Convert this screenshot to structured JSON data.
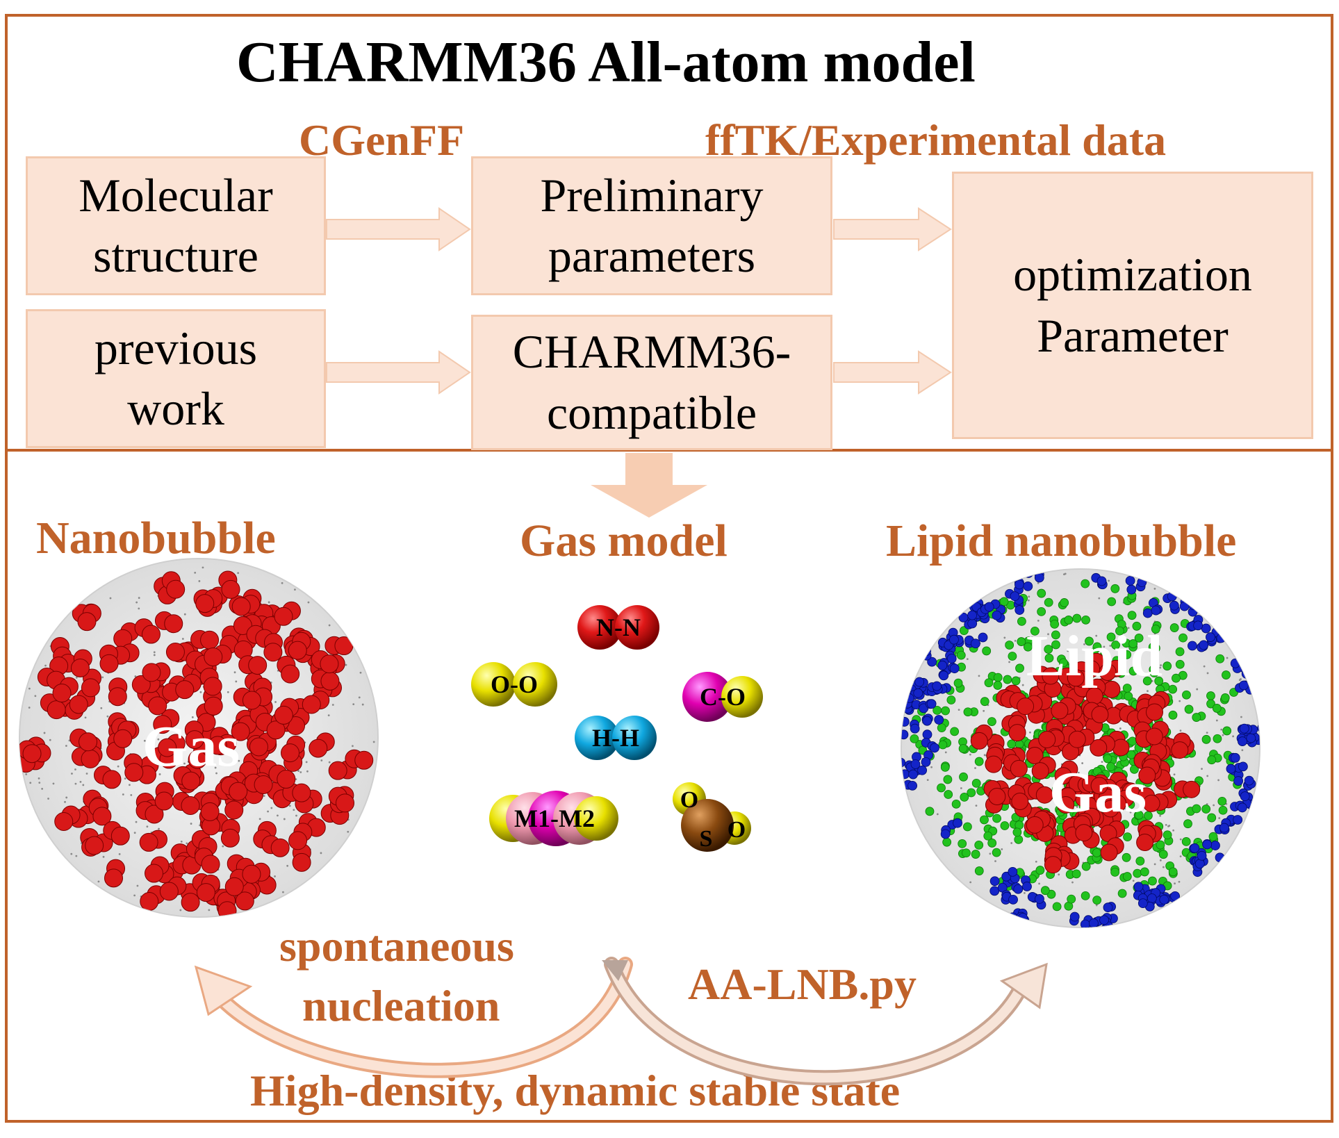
{
  "title": "CHARMM36 All-atom model",
  "tool_labels": {
    "cgenff": "CGenFF",
    "fftk": "ffTK/Experimental data"
  },
  "boxes": {
    "molecular_structure": [
      "Molecular",
      "structure"
    ],
    "preliminary_parameters": [
      "Preliminary",
      "parameters"
    ],
    "previous_work": [
      "previous",
      "work"
    ],
    "charmm36_compatible": [
      "CHARMM36-",
      "compatible"
    ],
    "optimization_parameter": [
      "optimization",
      "Parameter"
    ]
  },
  "sections": {
    "nanobubble": "Nanobubble",
    "gas_model": "Gas model",
    "lipid_nanobubble": "Lipid nanobubble"
  },
  "bubble_labels": {
    "gas_left": "Gas",
    "lipid": "Lipid",
    "gas_right": "Gas"
  },
  "molecules": {
    "n2": "N-N",
    "o2": "O-O",
    "co": "C-O",
    "h2": "H-H",
    "m1m2": "M1-M2",
    "so2_o1": "O",
    "so2_s": "S",
    "so2_o2": "O"
  },
  "process": {
    "spontaneous": [
      "spontaneous",
      "nucleation"
    ],
    "script": "AA-LNB.py",
    "state": "High-density, dynamic stable state"
  },
  "colors": {
    "frame": "#c0622a",
    "box_fill": "#fbe3d5",
    "gas": "#d81818",
    "lipid_head": "#1424c8",
    "lipid_tail": "#22c21e"
  }
}
